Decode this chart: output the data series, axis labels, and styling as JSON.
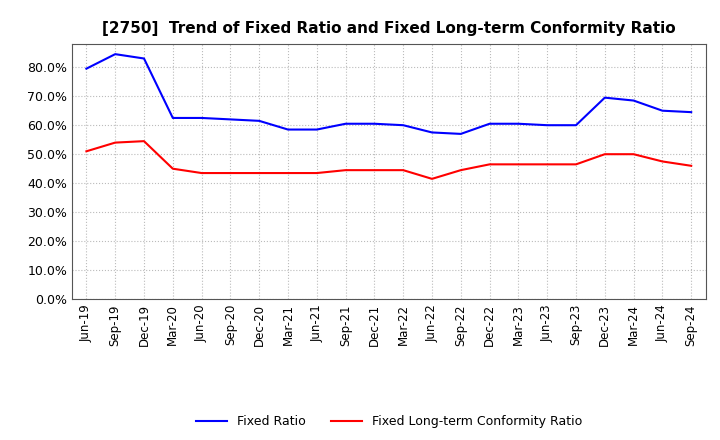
{
  "title": "[2750]  Trend of Fixed Ratio and Fixed Long-term Conformity Ratio",
  "x_labels": [
    "Jun-19",
    "Sep-19",
    "Dec-19",
    "Mar-20",
    "Jun-20",
    "Sep-20",
    "Dec-20",
    "Mar-21",
    "Jun-21",
    "Sep-21",
    "Dec-21",
    "Mar-22",
    "Jun-22",
    "Sep-22",
    "Dec-22",
    "Mar-23",
    "Jun-23",
    "Sep-23",
    "Dec-23",
    "Mar-24",
    "Jun-24",
    "Sep-24"
  ],
  "fixed_ratio": [
    79.5,
    84.5,
    83.0,
    62.5,
    62.5,
    62.0,
    61.5,
    58.5,
    58.5,
    60.5,
    60.5,
    60.0,
    57.5,
    57.0,
    60.5,
    60.5,
    60.0,
    60.0,
    69.5,
    68.5,
    65.0,
    64.5
  ],
  "fixed_lt_ratio": [
    51.0,
    54.0,
    54.5,
    45.0,
    43.5,
    43.5,
    43.5,
    43.5,
    43.5,
    44.5,
    44.5,
    44.5,
    41.5,
    44.5,
    46.5,
    46.5,
    46.5,
    46.5,
    50.0,
    50.0,
    47.5,
    46.0
  ],
  "fixed_ratio_color": "#0000FF",
  "fixed_lt_ratio_color": "#FF0000",
  "ylim": [
    0,
    88
  ],
  "yticks": [
    0,
    10,
    20,
    30,
    40,
    50,
    60,
    70,
    80
  ],
  "background_color": "#FFFFFF",
  "plot_bg_color": "#FFFFFF",
  "grid_color": "#BBBBBB",
  "legend_fixed_ratio": "Fixed Ratio",
  "legend_fixed_lt_ratio": "Fixed Long-term Conformity Ratio",
  "title_fontsize": 11,
  "tick_fontsize": 8.5,
  "ytick_fontsize": 9
}
